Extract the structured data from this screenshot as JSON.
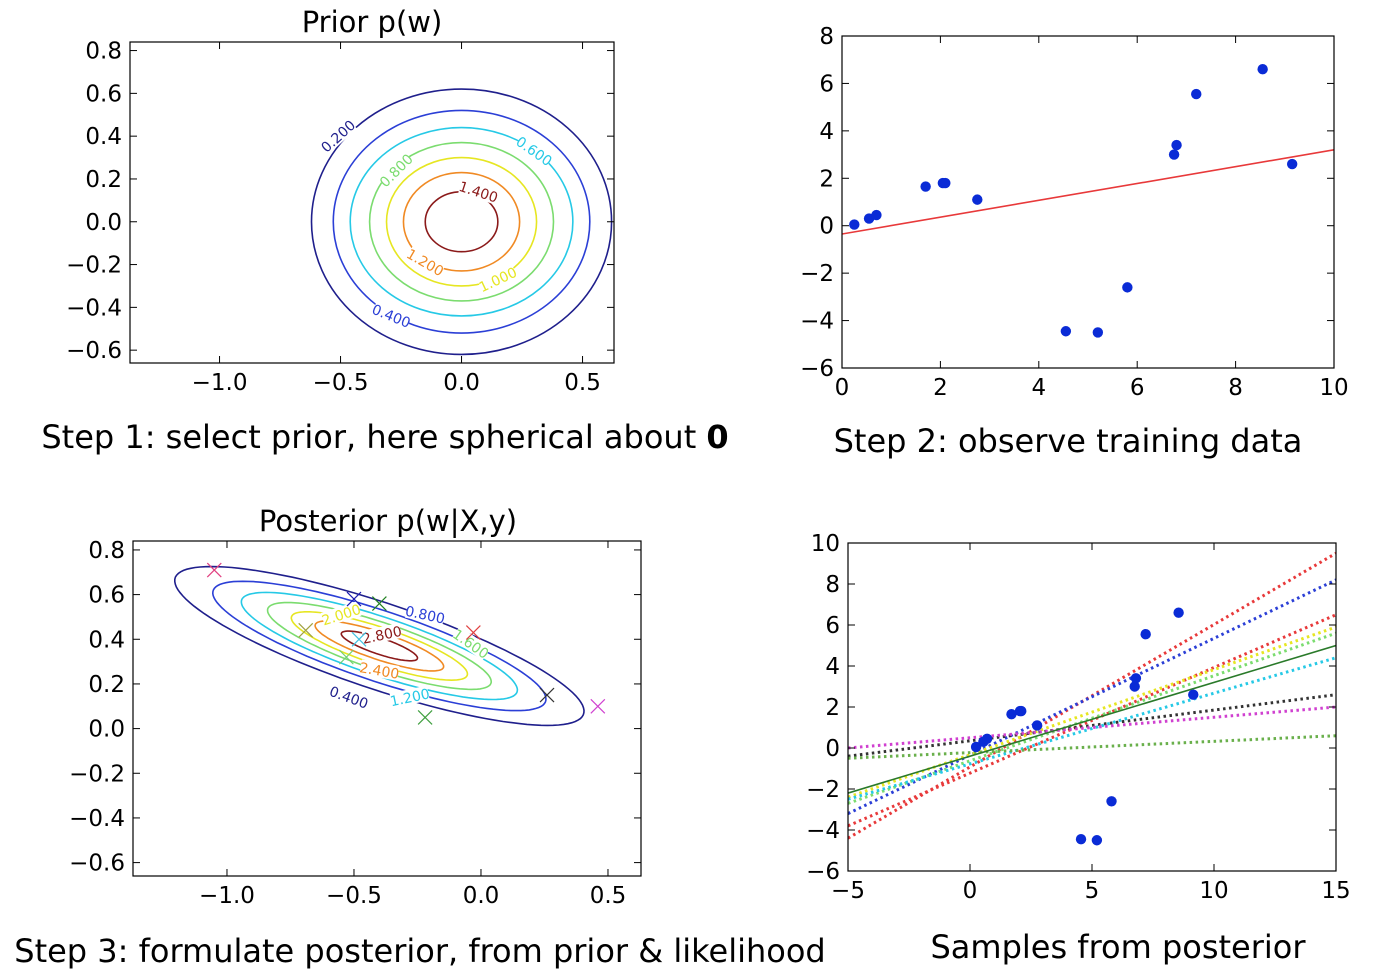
{
  "chart_data": [
    {
      "type": "contour",
      "title": "Prior p(w)",
      "caption_parts": [
        "Step 1: select prior, here spherical about ",
        "0"
      ],
      "xlim": [
        -1.37,
        0.63
      ],
      "ylim": [
        -0.66,
        0.84
      ],
      "x_ticks": [
        "−1.0",
        "−0.5",
        "0.0",
        "0.5"
      ],
      "x_tick_values": [
        -1.0,
        -0.5,
        0.0,
        0.5
      ],
      "y_ticks": [
        "−0.6",
        "−0.4",
        "−0.2",
        "0.0",
        "0.2",
        "0.4",
        "0.6",
        "0.8"
      ],
      "y_tick_values": [
        -0.6,
        -0.4,
        -0.2,
        0.0,
        0.2,
        0.4,
        0.6,
        0.8
      ],
      "center": [
        0.0,
        0.0
      ],
      "levels": [
        {
          "value": 0.2,
          "label": "0.200",
          "color": "#1f1f8c",
          "rx": 0.62,
          "ry": 0.62
        },
        {
          "value": 0.4,
          "label": "0.400",
          "color": "#2b3fd6",
          "rx": 0.53,
          "ry": 0.52
        },
        {
          "value": 0.6,
          "label": "0.600",
          "color": "#26c9e6",
          "rx": 0.46,
          "ry": 0.44
        },
        {
          "value": 0.8,
          "label": "0.800",
          "color": "#7bdc6f",
          "rx": 0.38,
          "ry": 0.37
        },
        {
          "value": 1.0,
          "label": "1.000",
          "color": "#e6e622",
          "rx": 0.31,
          "ry": 0.3
        },
        {
          "value": 1.2,
          "label": "1.200",
          "color": "#f08a24",
          "rx": 0.24,
          "ry": 0.23
        },
        {
          "value": 1.4,
          "label": "1.400",
          "color": "#8b1a1a",
          "rx": 0.15,
          "ry": 0.14
        }
      ],
      "labeled_levels": [
        {
          "label": "0.200",
          "at": [
            -0.51,
            0.4
          ],
          "angle": -42
        },
        {
          "label": "0.600",
          "at": [
            0.3,
            0.33
          ],
          "angle": 35
        },
        {
          "label": "0.800",
          "at": [
            -0.27,
            0.24
          ],
          "angle": -45
        },
        {
          "label": "1.400",
          "at": [
            0.07,
            0.14
          ],
          "angle": 18
        },
        {
          "label": "1.200",
          "at": [
            -0.15,
            -0.19
          ],
          "angle": 30
        },
        {
          "label": "1.000",
          "at": [
            0.15,
            -0.27
          ],
          "angle": -25
        },
        {
          "label": "0.400",
          "at": [
            -0.29,
            -0.44
          ],
          "angle": 22
        }
      ]
    },
    {
      "type": "scatter",
      "title": "",
      "caption": "Step 2: observe training data",
      "xlim": [
        0,
        10
      ],
      "ylim": [
        -6,
        8
      ],
      "x_ticks": [
        "0",
        "2",
        "4",
        "6",
        "8",
        "10"
      ],
      "x_tick_values": [
        0,
        2,
        4,
        6,
        8,
        10
      ],
      "y_ticks": [
        "−6",
        "−4",
        "−2",
        "0",
        "2",
        "4",
        "6",
        "8"
      ],
      "y_tick_values": [
        -6,
        -4,
        -2,
        0,
        2,
        4,
        6,
        8
      ],
      "points": {
        "x": [
          0.25,
          0.55,
          0.7,
          1.7,
          2.05,
          2.1,
          2.75,
          4.55,
          5.2,
          5.8,
          6.75,
          6.8,
          7.2,
          8.55,
          9.15
        ],
        "y": [
          0.05,
          0.3,
          0.45,
          1.65,
          1.8,
          1.8,
          1.1,
          -4.45,
          -4.5,
          -2.6,
          3.0,
          3.4,
          5.55,
          6.6,
          2.6
        ],
        "color": "#0a2bd6"
      },
      "line": {
        "x": [
          0,
          10
        ],
        "y": [
          -0.35,
          3.2
        ],
        "color": "#e8393a"
      }
    },
    {
      "type": "contour",
      "title": "Posterior p(w|X,y)",
      "caption": "Step 3: formulate posterior, from prior & likelihood",
      "xlim": [
        -1.37,
        0.63
      ],
      "ylim": [
        -0.66,
        0.84
      ],
      "x_ticks": [
        "−1.0",
        "−0.5",
        "0.0",
        "0.5"
      ],
      "x_tick_values": [
        -1.0,
        -0.5,
        0.0,
        0.5
      ],
      "y_ticks": [
        "−0.6",
        "−0.4",
        "−0.2",
        "0.0",
        "0.2",
        "0.4",
        "0.6",
        "0.8"
      ],
      "y_tick_values": [
        -0.6,
        -0.4,
        -0.2,
        0.0,
        0.2,
        0.4,
        0.6,
        0.8
      ],
      "center": [
        -0.4,
        0.37
      ],
      "rotation_deg": -21,
      "levels": [
        {
          "value": 0.4,
          "label": "0.400",
          "color": "#1f1f8c",
          "a": 0.86,
          "b": 0.19
        },
        {
          "value": 0.8,
          "label": "0.800",
          "color": "#2b3fd6",
          "a": 0.7,
          "b": 0.155
        },
        {
          "value": 1.2,
          "label": "1.200",
          "color": "#26c9e6",
          "a": 0.58,
          "b": 0.128
        },
        {
          "value": 1.6,
          "label": "1.600",
          "color": "#7bdc6f",
          "a": 0.47,
          "b": 0.104
        },
        {
          "value": 2.0,
          "label": "2.000",
          "color": "#e6e622",
          "a": 0.37,
          "b": 0.082
        },
        {
          "value": 2.4,
          "label": "2.400",
          "color": "#f08a24",
          "a": 0.27,
          "b": 0.06
        },
        {
          "value": 2.8,
          "label": "2.800",
          "color": "#8b1a1a",
          "a": 0.16,
          "b": 0.036
        }
      ],
      "labeled_levels": [
        {
          "label": "0.800",
          "at": [
            -0.22,
            0.51
          ],
          "angle": 12
        },
        {
          "label": "2.000",
          "at": [
            -0.55,
            0.51
          ],
          "angle": -18
        },
        {
          "label": "1.600",
          "at": [
            -0.04,
            0.38
          ],
          "angle": 35
        },
        {
          "label": "2.800",
          "at": [
            -0.39,
            0.42
          ],
          "angle": -12
        },
        {
          "label": "2.400",
          "at": [
            -0.4,
            0.26
          ],
          "angle": 10
        },
        {
          "label": "1.200",
          "at": [
            -0.28,
            0.14
          ],
          "angle": -12
        },
        {
          "label": "0.400",
          "at": [
            -0.52,
            0.14
          ],
          "angle": 20
        }
      ],
      "sample_markers": [
        {
          "x": -1.05,
          "y": 0.71,
          "color": "#e04080"
        },
        {
          "x": -0.5,
          "y": 0.58,
          "color": "#1a1ab0"
        },
        {
          "x": -0.4,
          "y": 0.56,
          "color": "#208020"
        },
        {
          "x": -0.69,
          "y": 0.44,
          "color": "#a0a040"
        },
        {
          "x": -0.48,
          "y": 0.4,
          "color": "#40c0e0"
        },
        {
          "x": -0.53,
          "y": 0.32,
          "color": "#70d070"
        },
        {
          "x": -0.03,
          "y": 0.43,
          "color": "#e04040"
        },
        {
          "x": -0.22,
          "y": 0.05,
          "color": "#40a040"
        },
        {
          "x": 0.26,
          "y": 0.15,
          "color": "#333333"
        },
        {
          "x": 0.46,
          "y": 0.1,
          "color": "#d040d0"
        }
      ]
    },
    {
      "type": "scatter",
      "title": "",
      "caption": "Samples from posterior",
      "xlim": [
        -5,
        15
      ],
      "ylim": [
        -6,
        10
      ],
      "x_ticks": [
        "−5",
        "0",
        "5",
        "10",
        "15"
      ],
      "x_tick_values": [
        -5,
        0,
        5,
        10,
        15
      ],
      "y_ticks": [
        "−6",
        "−4",
        "−2",
        "0",
        "2",
        "4",
        "6",
        "8",
        "10"
      ],
      "y_tick_values": [
        -6,
        -4,
        -2,
        0,
        2,
        4,
        6,
        8,
        10
      ],
      "points": {
        "x": [
          0.25,
          0.55,
          0.7,
          1.7,
          2.05,
          2.1,
          2.75,
          4.55,
          5.2,
          5.8,
          6.75,
          6.8,
          7.2,
          8.55,
          9.15
        ],
        "y": [
          0.05,
          0.3,
          0.45,
          1.65,
          1.8,
          1.8,
          1.1,
          -4.45,
          -4.5,
          -2.6,
          3.0,
          3.4,
          5.55,
          6.6,
          2.6
        ],
        "color": "#0a2bd6"
      },
      "mean_line": {
        "x": [
          -5,
          15
        ],
        "y": [
          -2.2,
          5.0
        ],
        "color": "#2a7a2a"
      },
      "sample_lines": [
        {
          "y_at": [
            -4.4,
            9.5
          ],
          "color": "#e8393a"
        },
        {
          "y_at": [
            -3.2,
            8.2
          ],
          "color": "#2b3fd6"
        },
        {
          "y_at": [
            -3.8,
            6.5
          ],
          "color": "#e8393a"
        },
        {
          "y_at": [
            -2.4,
            5.9
          ],
          "color": "#e6e622"
        },
        {
          "y_at": [
            -2.7,
            5.6
          ],
          "color": "#7bdc6f"
        },
        {
          "y_at": [
            -2.5,
            4.4
          ],
          "color": "#26c9e6"
        },
        {
          "y_at": [
            -0.4,
            2.6
          ],
          "color": "#333333"
        },
        {
          "y_at": [
            0.0,
            2.0
          ],
          "color": "#d040d0"
        },
        {
          "y_at": [
            -0.5,
            0.6
          ],
          "color": "#6ab04c"
        }
      ]
    }
  ]
}
